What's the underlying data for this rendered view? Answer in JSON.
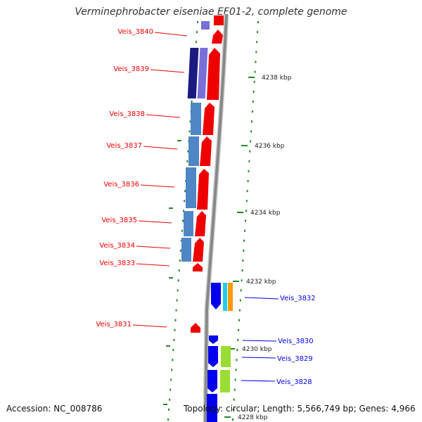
{
  "title": "Verminephrobacter eiseniae EF01-2, complete genome",
  "accession": "Accession: NC_008786",
  "topology": "Topology: circular; Length: 5,566,749 bp; Genes: 4,966",
  "colors": {
    "forward_gene": "#ee0000",
    "reverse_gene": "#0000ee",
    "blue_steel": "#4f86c6",
    "navy": "#1a1a80",
    "purple": "#7a6ed8",
    "light_green": "#99dd33",
    "cyan": "#22ccee",
    "orange": "#ff9900",
    "tick_green": "#228822",
    "backbone": "#888888"
  },
  "scale_labels": [
    "4238 kbp",
    "4236 kbp",
    "4234 kbp",
    "4232 kbp",
    "4230 kbp",
    "4228 kbp"
  ],
  "left_labels": [
    "Veis_3840",
    "Veis_3839",
    "Veis_3838",
    "Veis_3837",
    "Veis_3836",
    "Veis_3835",
    "Veis_3834",
    "Veis_3833",
    "Veis_3831"
  ],
  "right_labels": [
    "Veis_3832",
    "Veis_3830",
    "Veis_3829",
    "Veis_3828"
  ]
}
